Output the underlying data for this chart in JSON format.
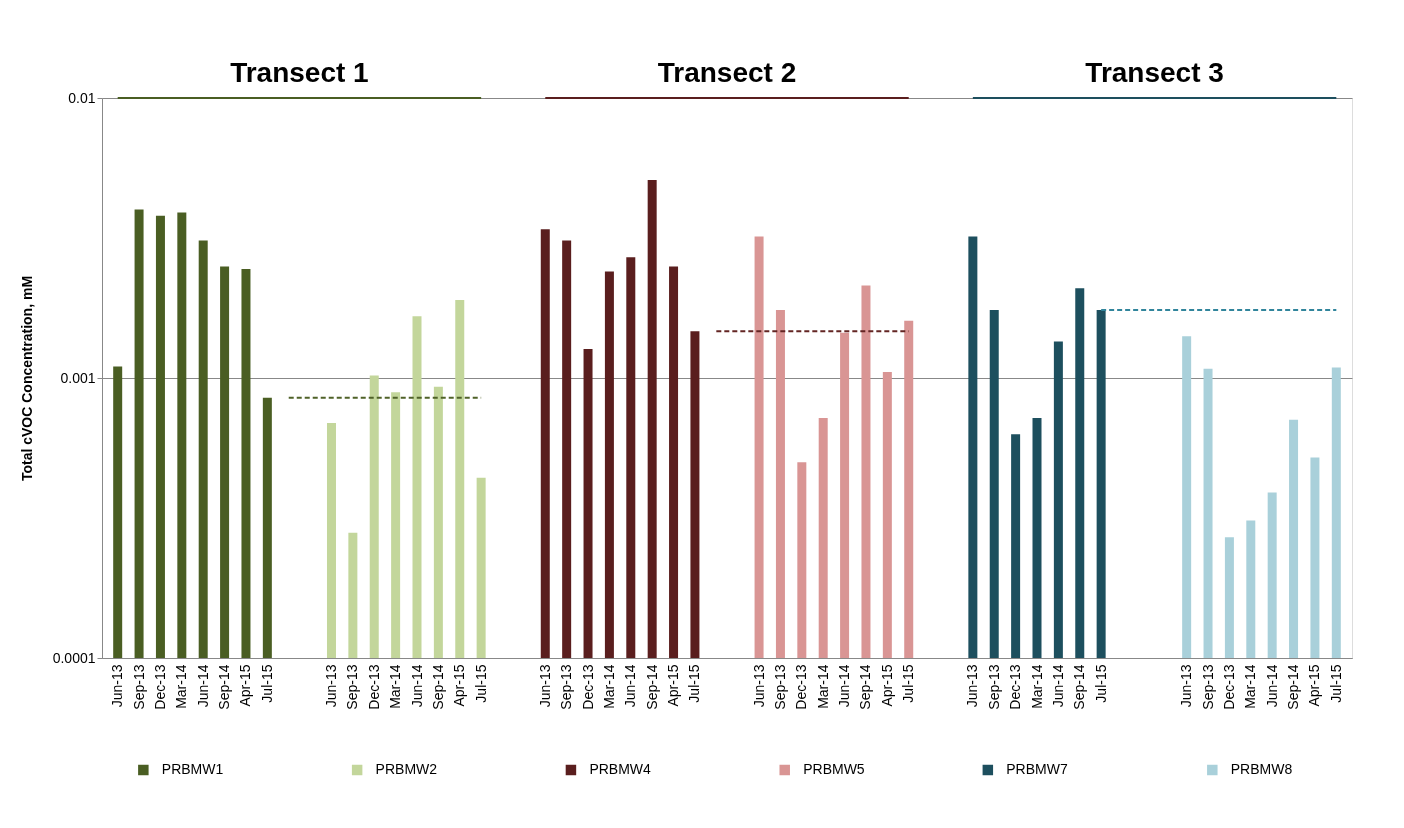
{
  "chart_data": {
    "type": "bar",
    "ylabel": "Total cVOC Concentration, mM",
    "annotations": [
      "Transect 1",
      "Transect 2",
      "Transect 3"
    ],
    "categories": [
      "Jun-13",
      "Sep-13",
      "Dec-13",
      "Mar-14",
      "Jun-14",
      "Sep-14",
      "Apr-15",
      "Jul-15",
      null,
      null,
      "Jun-13",
      "Sep-13",
      "Dec-13",
      "Mar-14",
      "Jun-14",
      "Sep-14",
      "Apr-15",
      "Jul-15",
      null,
      null,
      "Jun-13",
      "Sep-13",
      "Dec-13",
      "Mar-14",
      "Jun-14",
      "Sep-14",
      "Apr-15",
      "Jul-15",
      null,
      null,
      "Jun-13",
      "Sep-13",
      "Dec-13",
      "Mar-14",
      "Jun-14",
      "Sep-14",
      "Apr-15",
      "Jul-15",
      null,
      null,
      "Jun-13",
      "Sep-13",
      "Dec-13",
      "Mar-14",
      "Jun-14",
      "Sep-14",
      "Jul-15",
      null,
      null,
      null,
      "Jun-13",
      "Sep-13",
      "Dec-13",
      "Mar-14",
      "Jun-14",
      "Sep-14",
      "Apr-15",
      "Jul-15"
    ],
    "series": [
      {
        "name": "PRBMW1",
        "color": "#4a5e23",
        "values": [
          0.0011,
          0.004,
          0.0038,
          0.0039,
          0.0031,
          0.0025,
          0.00245,
          0.00085,
          null,
          null,
          null,
          null,
          null,
          null,
          null,
          null,
          null,
          null,
          null,
          null,
          null,
          null,
          null,
          null,
          null,
          null,
          null,
          null,
          null,
          null,
          null,
          null,
          null,
          null,
          null,
          null,
          null,
          null,
          null,
          null,
          null,
          null,
          null,
          null,
          null,
          null,
          null,
          null,
          null,
          null,
          null,
          null,
          null,
          null,
          null,
          null,
          null,
          null
        ]
      },
      {
        "name": "PRBMW2",
        "color": "#c3d69b",
        "values": [
          null,
          null,
          null,
          null,
          null,
          null,
          null,
          null,
          null,
          null,
          0.00069,
          0.00028,
          0.00102,
          0.00089,
          0.00166,
          0.00093,
          0.0019,
          0.00044,
          null,
          null,
          null,
          null,
          null,
          null,
          null,
          null,
          null,
          null,
          null,
          null,
          null,
          null,
          null,
          null,
          null,
          null,
          null,
          null,
          null,
          null,
          null,
          null,
          null,
          null,
          null,
          null,
          null,
          null,
          null,
          null,
          null,
          null,
          null,
          null,
          null,
          null,
          null,
          null
        ]
      },
      {
        "name": "PRBMW4",
        "color": "#5a1e1e",
        "values": [
          null,
          null,
          null,
          null,
          null,
          null,
          null,
          null,
          null,
          null,
          null,
          null,
          null,
          null,
          null,
          null,
          null,
          null,
          null,
          null,
          0.0034,
          0.0031,
          0.00127,
          0.0024,
          0.0027,
          0.0051,
          0.0025,
          0.00147,
          null,
          null,
          null,
          null,
          null,
          null,
          null,
          null,
          null,
          null,
          null,
          null,
          null,
          null,
          null,
          null,
          null,
          null,
          null,
          null,
          null,
          null,
          null,
          null,
          null,
          null,
          null,
          null,
          null,
          null
        ]
      },
      {
        "name": "PRBMW5",
        "color": "#d99594",
        "values": [
          null,
          null,
          null,
          null,
          null,
          null,
          null,
          null,
          null,
          null,
          null,
          null,
          null,
          null,
          null,
          null,
          null,
          null,
          null,
          null,
          null,
          null,
          null,
          null,
          null,
          null,
          null,
          null,
          null,
          null,
          0.0032,
          0.00175,
          0.0005,
          0.00072,
          0.00145,
          0.00214,
          0.00105,
          0.0016,
          null,
          null,
          null,
          null,
          null,
          null,
          null,
          null,
          null,
          null,
          null,
          null,
          null,
          null,
          null,
          null,
          null,
          null,
          null,
          null
        ]
      },
      {
        "name": "PRBMW7",
        "color": "#1d4f5e",
        "values": [
          null,
          null,
          null,
          null,
          null,
          null,
          null,
          null,
          null,
          null,
          null,
          null,
          null,
          null,
          null,
          null,
          null,
          null,
          null,
          null,
          null,
          null,
          null,
          null,
          null,
          null,
          null,
          null,
          null,
          null,
          null,
          null,
          null,
          null,
          null,
          null,
          null,
          null,
          null,
          null,
          0.0032,
          0.00175,
          0.00063,
          0.00072,
          0.00135,
          0.00209,
          0.00175,
          null,
          null,
          null,
          null,
          null,
          null,
          null,
          null,
          null,
          null,
          null
        ]
      },
      {
        "name": "PRBMW8",
        "color": "#a9d0da",
        "values": [
          null,
          null,
          null,
          null,
          null,
          null,
          null,
          null,
          null,
          null,
          null,
          null,
          null,
          null,
          null,
          null,
          null,
          null,
          null,
          null,
          null,
          null,
          null,
          null,
          null,
          null,
          null,
          null,
          null,
          null,
          null,
          null,
          null,
          null,
          null,
          null,
          null,
          null,
          null,
          null,
          null,
          null,
          null,
          null,
          null,
          null,
          null,
          null,
          null,
          null,
          0.00141,
          0.00108,
          0.00027,
          0.00031,
          0.00039,
          0.00071,
          0.00052,
          0.00109
        ]
      },
      {
        "type": "line",
        "line_style": "dashed",
        "color": "#4f6228",
        "values": [
          null,
          null,
          null,
          null,
          null,
          null,
          null,
          null,
          0.00085,
          0.00085,
          0.00085,
          0.00085,
          0.00085,
          0.00085,
          0.00085,
          0.00085,
          0.00085,
          0.00085,
          null,
          null,
          null,
          null,
          null,
          null,
          null,
          null,
          null,
          null,
          null,
          null,
          null,
          null,
          null,
          null,
          null,
          null,
          null,
          null,
          null,
          null,
          null,
          null,
          null,
          null,
          null,
          null,
          null,
          null,
          null,
          null,
          null,
          null,
          null,
          null,
          null,
          null,
          null,
          null
        ]
      },
      {
        "type": "line",
        "line_style": "dashed",
        "color": "#632523",
        "values": [
          null,
          null,
          null,
          null,
          null,
          null,
          null,
          null,
          null,
          null,
          null,
          null,
          null,
          null,
          null,
          null,
          null,
          null,
          null,
          null,
          null,
          null,
          null,
          null,
          null,
          null,
          null,
          null,
          0.00147,
          0.00147,
          0.00147,
          0.00147,
          0.00147,
          0.00147,
          0.00147,
          0.00147,
          0.00147,
          0.00147,
          null,
          null,
          null,
          null,
          null,
          null,
          null,
          null,
          null,
          null,
          null,
          null,
          null,
          null,
          null,
          null,
          null,
          null,
          null,
          null
        ]
      },
      {
        "type": "line",
        "line_style": "dashed",
        "color": "#31859c",
        "values": [
          null,
          null,
          null,
          null,
          null,
          null,
          null,
          null,
          null,
          null,
          null,
          null,
          null,
          null,
          null,
          null,
          null,
          null,
          null,
          null,
          null,
          null,
          null,
          null,
          null,
          null,
          null,
          null,
          null,
          null,
          null,
          null,
          null,
          null,
          null,
          null,
          null,
          null,
          null,
          null,
          null,
          null,
          null,
          null,
          null,
          null,
          0.00175,
          0.00175,
          0.00175,
          0.00175,
          0.00175,
          0.00175,
          0.00175,
          0.00175,
          0.00175,
          0.00175,
          0.00175,
          0.00175
        ]
      }
    ],
    "log": true,
    "ylim": [
      0.0001,
      0.01
    ],
    "yticks": [
      0.0001,
      0.001,
      0.01
    ],
    "grid": "y",
    "legend": "bottom"
  }
}
